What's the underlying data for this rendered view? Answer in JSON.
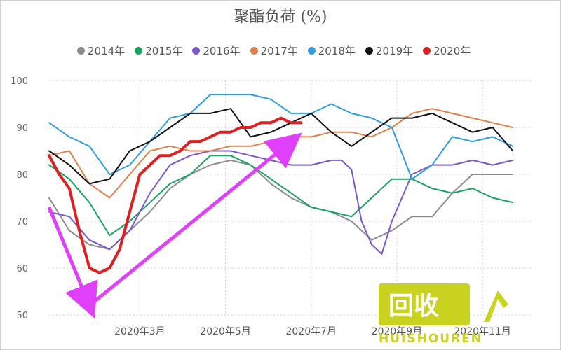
{
  "title": "聚酯负荷 (%)",
  "watermark": {
    "cn": "回收",
    "en": "HUISHOUREN",
    "color": "#c9d21e"
  },
  "chart_data": {
    "type": "line",
    "title": "聚酯负荷 (%)",
    "ylim": [
      50,
      100
    ],
    "yticks": [
      50,
      60,
      70,
      80,
      90,
      100
    ],
    "xlim": [
      0,
      48
    ],
    "xticks": [
      {
        "x": 9,
        "label": "2020年3月"
      },
      {
        "x": 17.5,
        "label": "2020年5月"
      },
      {
        "x": 26,
        "label": "2020年7月"
      },
      {
        "x": 34.5,
        "label": "2020年9月"
      },
      {
        "x": 43,
        "label": "2020年11月"
      }
    ],
    "grid": "dotted",
    "legend": "top",
    "series": [
      {
        "name": "2014年",
        "color": "#8c8c8c",
        "width": 2,
        "x": [
          0,
          2,
          4,
          6,
          8,
          10,
          12,
          14,
          16,
          18,
          20,
          22,
          24,
          26,
          28,
          30,
          32,
          34,
          36,
          38,
          40,
          42,
          44,
          46
        ],
        "y": [
          75,
          68,
          65,
          64,
          68,
          72,
          77,
          80,
          82,
          83,
          82,
          78,
          75,
          73,
          72,
          70,
          66,
          68,
          71,
          71,
          76,
          80,
          80,
          80
        ]
      },
      {
        "name": "2015年",
        "color": "#1aa260",
        "width": 2,
        "x": [
          0,
          2,
          4,
          6,
          8,
          10,
          12,
          14,
          16,
          18,
          20,
          22,
          24,
          26,
          28,
          30,
          32,
          34,
          36,
          38,
          40,
          42,
          44,
          46
        ],
        "y": [
          82,
          79,
          74,
          67,
          70,
          74,
          78,
          80,
          84,
          84,
          82,
          79,
          76,
          73,
          72,
          71,
          75,
          79,
          79,
          77,
          76,
          77,
          75,
          74
        ]
      },
      {
        "name": "2016年",
        "color": "#7b57c8",
        "width": 2,
        "x": [
          0,
          2,
          4,
          6,
          8,
          10,
          12,
          14,
          16,
          18,
          20,
          22,
          24,
          26,
          28,
          29,
          30,
          31,
          32,
          33,
          34,
          36,
          38,
          40,
          42,
          44,
          46
        ],
        "y": [
          72,
          71,
          66,
          64,
          68,
          76,
          82,
          84,
          85,
          85,
          84,
          83,
          82,
          82,
          83,
          83,
          81,
          70,
          65,
          63,
          70,
          80,
          82,
          82,
          83,
          82,
          83
        ]
      },
      {
        "name": "2017年",
        "color": "#e0804a",
        "width": 2,
        "x": [
          0,
          2,
          4,
          6,
          8,
          10,
          12,
          14,
          16,
          18,
          20,
          22,
          24,
          26,
          28,
          30,
          32,
          34,
          36,
          38,
          40,
          42,
          44,
          46
        ],
        "y": [
          84,
          85,
          78,
          75,
          80,
          85,
          86,
          85,
          85,
          86,
          86,
          87,
          88,
          88,
          89,
          89,
          88,
          90,
          93,
          94,
          93,
          92,
          91,
          90
        ]
      },
      {
        "name": "2018年",
        "color": "#2f9de0",
        "width": 2,
        "x": [
          0,
          2,
          4,
          6,
          8,
          10,
          12,
          14,
          16,
          18,
          20,
          22,
          24,
          26,
          28,
          30,
          32,
          34,
          36,
          38,
          40,
          42,
          44,
          46
        ],
        "y": [
          91,
          88,
          86,
          80,
          82,
          87,
          92,
          93,
          97,
          97,
          97,
          96,
          93,
          93,
          95,
          93,
          92,
          90,
          79,
          82,
          88,
          87,
          88,
          86
        ]
      },
      {
        "name": "2019年",
        "color": "#111111",
        "width": 2,
        "x": [
          0,
          2,
          4,
          6,
          8,
          10,
          12,
          14,
          16,
          18,
          20,
          22,
          24,
          26,
          28,
          30,
          32,
          34,
          36,
          38,
          40,
          42,
          44,
          46
        ],
        "y": [
          85,
          82,
          78,
          79,
          85,
          87,
          90,
          93,
          93,
          94,
          88,
          89,
          91,
          93,
          89,
          86,
          89,
          92,
          92,
          93,
          91,
          89,
          90,
          85
        ]
      },
      {
        "name": "2020年",
        "color": "#e02020",
        "width": 4,
        "x": [
          0,
          1,
          2,
          3,
          4,
          5,
          6,
          7,
          8,
          9,
          10,
          11,
          12,
          13,
          14,
          15,
          16,
          17,
          18,
          19,
          20,
          21,
          22,
          23,
          24,
          25
        ],
        "y": [
          84,
          80,
          77,
          68,
          60,
          59,
          60,
          64,
          72,
          80,
          82,
          84,
          84,
          85,
          87,
          87,
          88,
          89,
          89,
          90,
          90,
          91,
          91,
          92,
          91,
          91
        ]
      }
    ],
    "annotations": [
      {
        "type": "arrow",
        "color": "#e040fb",
        "from": [
          0,
          73
        ],
        "to": [
          4,
          52
        ]
      },
      {
        "type": "arrow",
        "color": "#e040fb",
        "from": [
          4,
          52
        ],
        "to": [
          24,
          87
        ]
      }
    ]
  }
}
